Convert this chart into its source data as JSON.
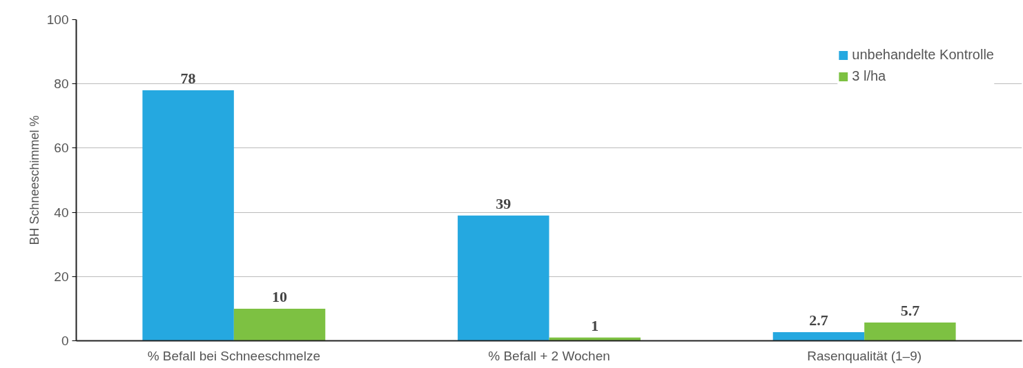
{
  "chart_data": {
    "type": "bar",
    "ylabel": "BH Schneeschimmel %",
    "categories": [
      "% Befall bei Schneeschmelze",
      "% Befall + 2 Wochen",
      "Rasenqualität (1–9)"
    ],
    "series": [
      {
        "name": "unbehandelte Kontrolle",
        "color": "#25a8e0",
        "values": [
          78,
          39,
          2.7
        ]
      },
      {
        "name": "3 l/ha",
        "color": "#7dc142",
        "values": [
          10,
          1,
          5.7
        ]
      }
    ],
    "ylim": [
      0,
      100
    ],
    "yticks": [
      0,
      20,
      40,
      60,
      80,
      100
    ],
    "grid": "y",
    "legend": "top right",
    "data_labels": true
  }
}
